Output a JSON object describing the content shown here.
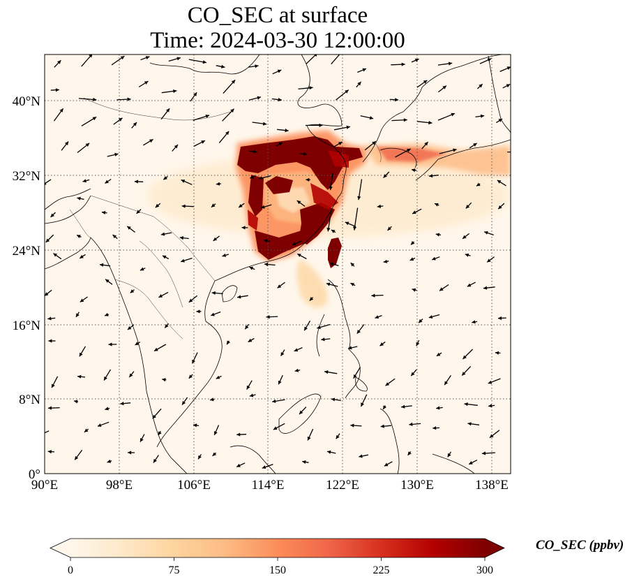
{
  "title": {
    "line1": "CO_SEC at surface",
    "line2": "Time: 2024-03-30 12:00:00"
  },
  "map": {
    "projection": "plate carree",
    "lon_range": [
      90,
      141
    ],
    "lat_range": [
      0,
      45
    ],
    "x_ticks": [
      "90°E",
      "98°E",
      "106°E",
      "114°E",
      "122°E",
      "130°E",
      "138°E"
    ],
    "y_ticks": [
      "0°",
      "8°N",
      "16°N",
      "24°N",
      "32°N",
      "40°N"
    ],
    "gridlines": "dotted"
  },
  "colorbar": {
    "label": "CO_SEC (ppbv)",
    "ticks": [
      "0",
      "75",
      "150",
      "225",
      "300"
    ],
    "range": [
      0,
      300
    ],
    "colormap": "OrRd",
    "extend": "both",
    "colors": [
      "#fff7ec",
      "#fee8c8",
      "#fdd49e",
      "#fdbb84",
      "#fc8d59",
      "#ef6548",
      "#d7301f",
      "#b30000",
      "#7f0000"
    ]
  },
  "chart_data": {
    "type": "heatmap",
    "variable": "CO_SEC",
    "level": "surface",
    "time": "2024-03-30 12:00:00",
    "unit": "ppbv",
    "plumes": [
      {
        "region": "North China Plain to Shandong",
        "lon": [
          111,
          125
        ],
        "lat": [
          31,
          36.5
        ],
        "level": "above 300"
      },
      {
        "region": "Jiangxi-Fujian-Zhejiang",
        "lon": [
          112,
          121
        ],
        "lat": [
          24,
          31
        ],
        "level": "150-300"
      },
      {
        "region": "Korea-Japan outflow",
        "lon": [
          125,
          140
        ],
        "lat": [
          31.5,
          35
        ],
        "level": "75-200"
      },
      {
        "region": "Taiwan",
        "lon": [
          120,
          121.5
        ],
        "lat": [
          22,
          25.5
        ],
        "level": "above 300"
      },
      {
        "region": "South China Sea plume",
        "lon": [
          116,
          120
        ],
        "lat": [
          17.5,
          23
        ],
        "level": "30-80"
      }
    ],
    "wind_vectors": "black arrows over whole domain"
  }
}
